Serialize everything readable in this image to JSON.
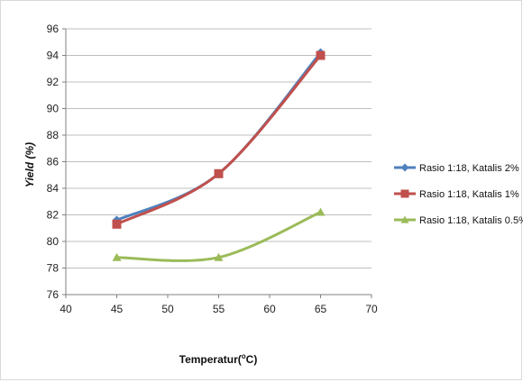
{
  "chart_data": {
    "type": "line",
    "title": "",
    "xlabel": "Temperatur",
    "xlabel_unit_prefix": "(",
    "xlabel_unit_sup": "o",
    "xlabel_unit_suffix": "C)",
    "ylabel": "Yield (%)",
    "xlim": [
      40,
      70
    ],
    "ylim": [
      76,
      96
    ],
    "xticks": [
      "40",
      "45",
      "50",
      "55",
      "60",
      "65",
      "70"
    ],
    "yticks": [
      "76",
      "78",
      "80",
      "82",
      "84",
      "86",
      "88",
      "90",
      "92",
      "94",
      "96"
    ],
    "grid": "horizontal",
    "legend_position": "right",
    "x": [
      45,
      55,
      65
    ],
    "series": [
      {
        "name": "Rasio 1:18, Katalis 2%",
        "values": [
          81.6,
          85.1,
          94.2
        ],
        "color": "#4f81bd",
        "marker": "diamond"
      },
      {
        "name": "Rasio 1:18, Katalis 1%",
        "values": [
          81.3,
          85.1,
          94.0
        ],
        "color": "#c0504d",
        "marker": "square"
      },
      {
        "name": "Rasio 1:18, Katalis 0.5%",
        "values": [
          78.8,
          78.8,
          82.2
        ],
        "color": "#9bbb59",
        "marker": "triangle"
      }
    ]
  }
}
